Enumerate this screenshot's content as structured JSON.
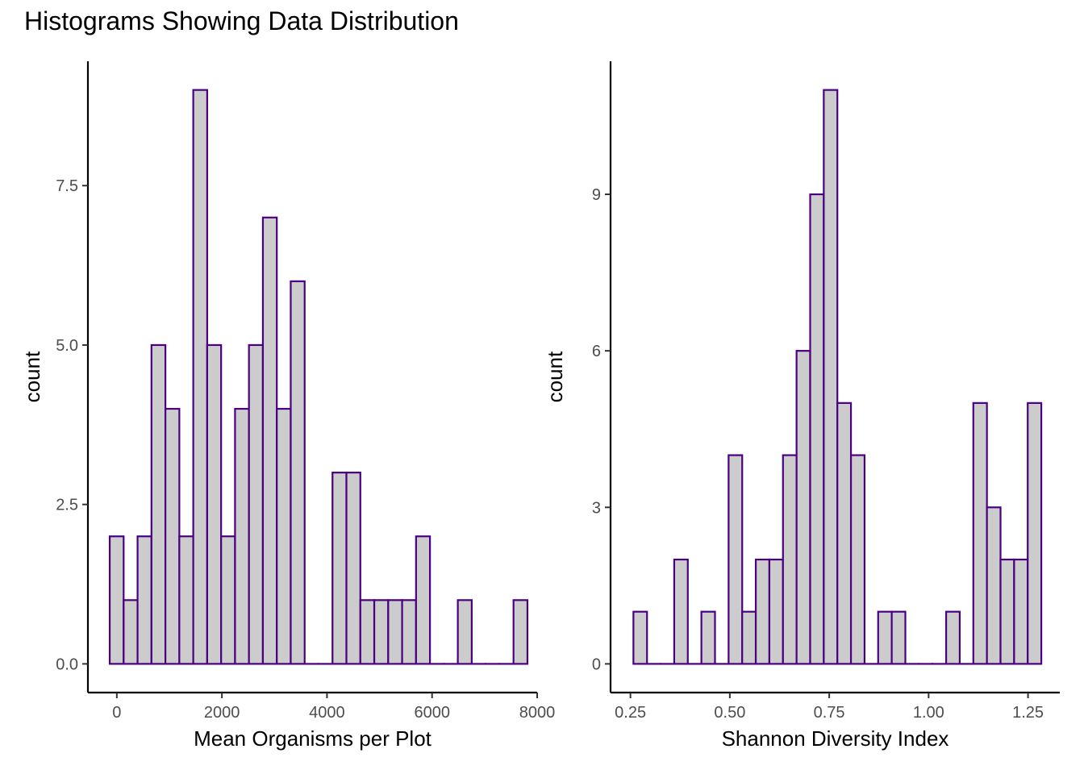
{
  "title": "Histograms Showing Data Distribution",
  "style": {
    "bar_fill": "#cccccc",
    "bar_stroke": "#4b0082",
    "axis_color": "#000000",
    "tick_label_color": "#4d4d4d"
  },
  "chart_data": [
    {
      "type": "bar",
      "subtype": "histogram",
      "xlabel": "Mean Organisms per Plot",
      "ylabel": "count",
      "xlim": [
        -550,
        8000
      ],
      "ylim": [
        -0.45,
        9.45
      ],
      "x_ticks": [
        0,
        2000,
        4000,
        6000,
        8000
      ],
      "x_tick_labels": [
        "0",
        "2000",
        "4000",
        "6000",
        "8000"
      ],
      "y_ticks": [
        0,
        2.5,
        5,
        7.5
      ],
      "y_tick_labels": [
        "0.0",
        "2.5",
        "5.0",
        "7.5"
      ],
      "bin_start": -135,
      "bin_width": 265,
      "values": [
        2,
        1,
        2,
        5,
        4,
        2,
        9,
        5,
        2,
        4,
        5,
        7,
        4,
        6,
        0,
        0,
        3,
        3,
        1,
        1,
        1,
        1,
        2,
        0,
        0,
        1,
        0,
        0,
        0,
        1
      ],
      "grid": false
    },
    {
      "type": "bar",
      "subtype": "histogram",
      "xlabel": "Shannon Diversity Index",
      "ylabel": "count",
      "xlim": [
        0.2,
        1.33
      ],
      "ylim": [
        -0.55,
        11.55
      ],
      "x_ticks": [
        0.25,
        0.5,
        0.75,
        1.0,
        1.25
      ],
      "x_tick_labels": [
        "0.25",
        "0.50",
        "0.75",
        "1.00",
        "1.25"
      ],
      "y_ticks": [
        0,
        3,
        6,
        9
      ],
      "y_tick_labels": [
        "0",
        "3",
        "6",
        "9"
      ],
      "bin_start": 0.2575,
      "bin_width": 0.0342,
      "values": [
        1,
        0,
        0,
        2,
        0,
        1,
        0,
        4,
        1,
        2,
        2,
        4,
        6,
        9,
        11,
        5,
        4,
        0,
        1,
        1,
        0,
        0,
        0,
        1,
        0,
        5,
        3,
        2,
        2,
        5
      ],
      "grid": false
    }
  ]
}
